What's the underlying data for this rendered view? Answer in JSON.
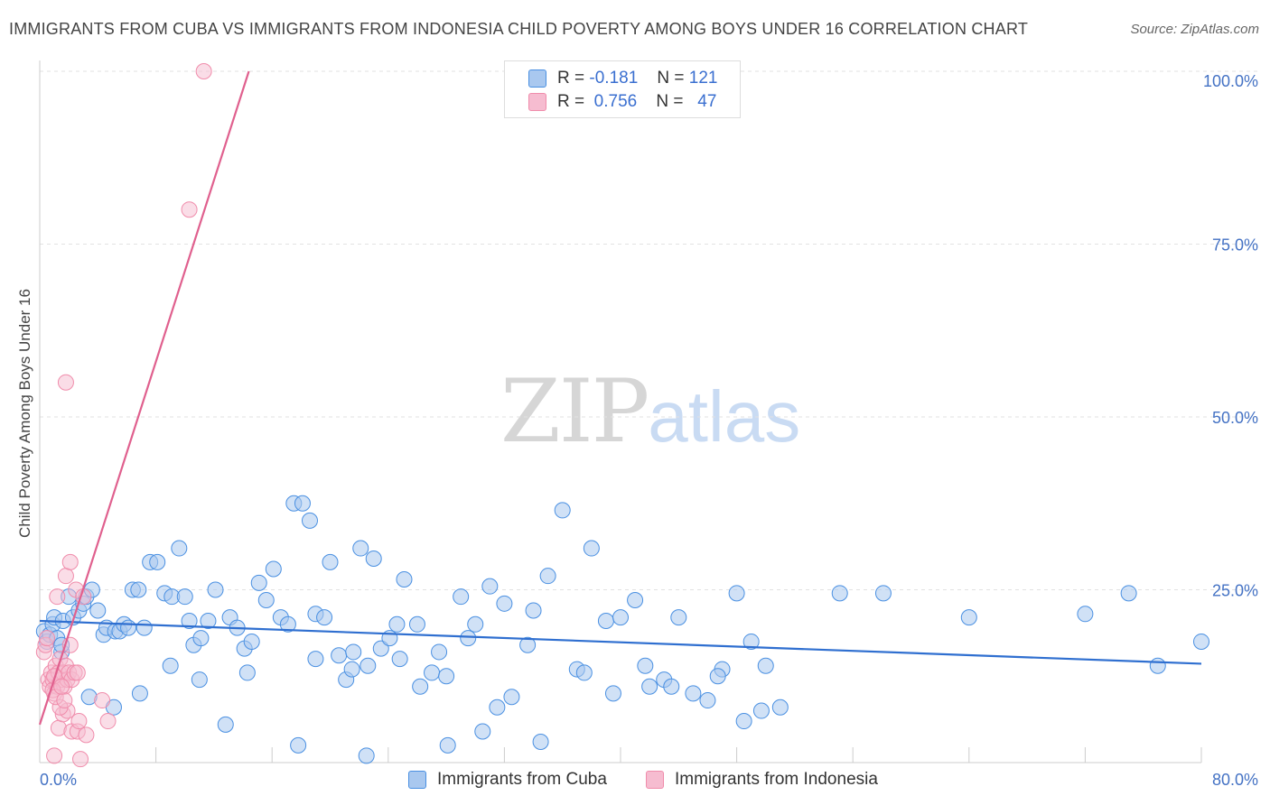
{
  "header": {
    "title": "IMMIGRANTS FROM CUBA VS IMMIGRANTS FROM INDONESIA CHILD POVERTY AMONG BOYS UNDER 16 CORRELATION CHART",
    "source": "Source: ZipAtlas.com"
  },
  "watermark": {
    "zip": "ZIP",
    "atlas": "atlas"
  },
  "legend": {
    "r_label": "R =",
    "n_label": "N =",
    "cuba": {
      "r": "-0.181",
      "n": "121"
    },
    "indonesia": {
      "r": "0.756",
      "n": "47"
    }
  },
  "bottom_legend": {
    "cuba": "Immigrants from Cuba",
    "indonesia": "Immigrants from Indonesia"
  },
  "chart_data": {
    "type": "scatter",
    "title": "IMMIGRANTS FROM CUBA VS IMMIGRANTS FROM INDONESIA CHILD POVERTY AMONG BOYS UNDER 16 CORRELATION CHART",
    "xlabel": "",
    "ylabel": "Child Poverty Among Boys Under 16",
    "xlim": [
      0,
      80
    ],
    "ylim": [
      0,
      100
    ],
    "x_tick_labels": [
      "0.0%",
      "80.0%"
    ],
    "y_ticks": [
      25,
      50,
      75,
      100
    ],
    "y_tick_labels": [
      "25.0%",
      "50.0%",
      "75.0%",
      "100.0%"
    ],
    "grid": true,
    "legend_position": "top-center",
    "colors": {
      "cuba": "#4a90e2",
      "cuba_fill": "#a9c8ef",
      "cuba_line": "#2f6fd0",
      "indonesia": "#f08cab",
      "indonesia_fill": "#f6bcd0",
      "indonesia_line": "#e0608e"
    },
    "series": [
      {
        "name": "Immigrants from Cuba",
        "r": -0.181,
        "n": 121,
        "trend": {
          "x": [
            0,
            80
          ],
          "y": [
            20.5,
            14.3
          ]
        },
        "points": [
          [
            0.3,
            19
          ],
          [
            0.5,
            17.5
          ],
          [
            0.7,
            18.5
          ],
          [
            0.9,
            20
          ],
          [
            1,
            21
          ],
          [
            1.2,
            18
          ],
          [
            1.5,
            16
          ],
          [
            1.6,
            20.5
          ],
          [
            2,
            24
          ],
          [
            2.3,
            21
          ],
          [
            2.7,
            22
          ],
          [
            3,
            23
          ],
          [
            3.2,
            24
          ],
          [
            3.6,
            25
          ],
          [
            4,
            22
          ],
          [
            4.4,
            18.5
          ],
          [
            4.6,
            19.5
          ],
          [
            5.2,
            19
          ],
          [
            5.5,
            19
          ],
          [
            5.8,
            20
          ],
          [
            6.1,
            19.5
          ],
          [
            6.4,
            25
          ],
          [
            6.8,
            25
          ],
          [
            7.2,
            19.5
          ],
          [
            7.6,
            29
          ],
          [
            8.1,
            29
          ],
          [
            8.6,
            24.5
          ],
          [
            9.1,
            24
          ],
          [
            9.6,
            31
          ],
          [
            10,
            24
          ],
          [
            10.3,
            20.5
          ],
          [
            10.6,
            17
          ],
          [
            11.1,
            18
          ],
          [
            11.6,
            20.5
          ],
          [
            12.1,
            25
          ],
          [
            13.1,
            21
          ],
          [
            13.6,
            19.5
          ],
          [
            14.1,
            16.5
          ],
          [
            14.6,
            17.5
          ],
          [
            15.1,
            26
          ],
          [
            15.6,
            23.5
          ],
          [
            16.1,
            28
          ],
          [
            16.6,
            21
          ],
          [
            17.1,
            20
          ],
          [
            17.5,
            37.5
          ],
          [
            18.1,
            37.5
          ],
          [
            18.6,
            35
          ],
          [
            19,
            21.5
          ],
          [
            19.6,
            21
          ],
          [
            20,
            29
          ],
          [
            20.6,
            15.5
          ],
          [
            21.1,
            12
          ],
          [
            21.6,
            16
          ],
          [
            22.1,
            31
          ],
          [
            22.6,
            14
          ],
          [
            23,
            29.5
          ],
          [
            23.5,
            16.5
          ],
          [
            24.1,
            18
          ],
          [
            24.6,
            20
          ],
          [
            25.1,
            26.5
          ],
          [
            26,
            20
          ],
          [
            27,
            13
          ],
          [
            27.5,
            16
          ],
          [
            28,
            12.5
          ],
          [
            29,
            24
          ],
          [
            29.5,
            18
          ],
          [
            30,
            20
          ],
          [
            31,
            25.5
          ],
          [
            32,
            23
          ],
          [
            33.6,
            17
          ],
          [
            34,
            22
          ],
          [
            35,
            27
          ],
          [
            36,
            36.5
          ],
          [
            37,
            13.5
          ],
          [
            38,
            31
          ],
          [
            39,
            20.5
          ],
          [
            40,
            21
          ],
          [
            41,
            23.5
          ],
          [
            42,
            11
          ],
          [
            43,
            12
          ],
          [
            44,
            21
          ],
          [
            45,
            10
          ],
          [
            46,
            9
          ],
          [
            47,
            13.5
          ],
          [
            48,
            24.5
          ],
          [
            49,
            17.5
          ],
          [
            50,
            14
          ],
          [
            51,
            8
          ],
          [
            55.1,
            24.5
          ],
          [
            58.1,
            24.5
          ],
          [
            64,
            21
          ],
          [
            72,
            21.5
          ],
          [
            75,
            24.5
          ],
          [
            80,
            17.5
          ],
          [
            77,
            14
          ],
          [
            1.5,
            17
          ],
          [
            3.4,
            9.5
          ],
          [
            5.1,
            8
          ],
          [
            6.9,
            10
          ],
          [
            9,
            14
          ],
          [
            11,
            12
          ],
          [
            12.8,
            5.5
          ],
          [
            14.3,
            13
          ],
          [
            17.8,
            2.5
          ],
          [
            19,
            15
          ],
          [
            21.5,
            13.5
          ],
          [
            22.5,
            1
          ],
          [
            24.8,
            15
          ],
          [
            26.2,
            11
          ],
          [
            28.1,
            2.5
          ],
          [
            30.5,
            4.5
          ],
          [
            31.5,
            8
          ],
          [
            32.5,
            9.5
          ],
          [
            34.5,
            3
          ],
          [
            37.5,
            13
          ],
          [
            39.5,
            10
          ],
          [
            41.7,
            14
          ],
          [
            43.5,
            11
          ],
          [
            46.7,
            12.5
          ],
          [
            48.5,
            6
          ],
          [
            49.7,
            7.5
          ]
        ]
      },
      {
        "name": "Immigrants from Indonesia",
        "r": 0.756,
        "n": 47,
        "trend": {
          "x": [
            0,
            14.4
          ],
          "y": [
            5.5,
            100
          ]
        },
        "points": [
          [
            0.3,
            16
          ],
          [
            0.4,
            17
          ],
          [
            0.5,
            18
          ],
          [
            0.6,
            12
          ],
          [
            0.7,
            11
          ],
          [
            0.8,
            13
          ],
          [
            0.9,
            12
          ],
          [
            1,
            10
          ],
          [
            1.1,
            14
          ],
          [
            1.2,
            11
          ],
          [
            1.3,
            13
          ],
          [
            1.4,
            15
          ],
          [
            1.5,
            12
          ],
          [
            1.6,
            13
          ],
          [
            1.7,
            11
          ],
          [
            1.8,
            14
          ],
          [
            1.9,
            12
          ],
          [
            2,
            13
          ],
          [
            2.1,
            17
          ],
          [
            2.2,
            12
          ],
          [
            2.4,
            13
          ],
          [
            2.6,
            13
          ],
          [
            1.2,
            24
          ],
          [
            1.8,
            27
          ],
          [
            2.1,
            29
          ],
          [
            2.5,
            25
          ],
          [
            3,
            24
          ],
          [
            1.3,
            5
          ],
          [
            1.6,
            7
          ],
          [
            1.9,
            7.5
          ],
          [
            2.2,
            4.5
          ],
          [
            2.6,
            4.5
          ],
          [
            3.2,
            4
          ],
          [
            4.3,
            9
          ],
          [
            4.7,
            6
          ],
          [
            1.4,
            8
          ],
          [
            0.9,
            10.5
          ],
          [
            1,
            12.5
          ],
          [
            1.1,
            9.5
          ],
          [
            1.7,
            9
          ],
          [
            2.7,
            6
          ],
          [
            1,
            1
          ],
          [
            2.8,
            0.5
          ],
          [
            1.5,
            11
          ],
          [
            1.8,
            55
          ],
          [
            10.3,
            80
          ],
          [
            11.3,
            100
          ]
        ]
      }
    ]
  }
}
